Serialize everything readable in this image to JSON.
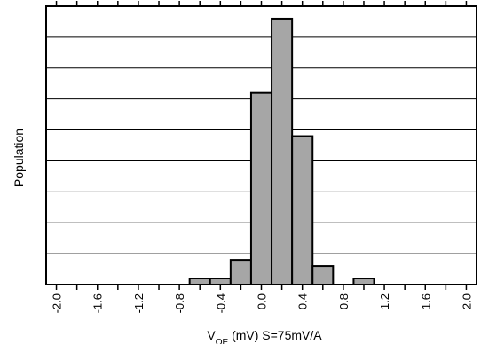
{
  "chart_data": {
    "type": "bar",
    "xlabel_main": "V",
    "xlabel_sub": "OE",
    "xlabel_rest": " (mV) S=75mV/A",
    "ylabel": "Population",
    "xlim": [
      -2.1,
      2.1
    ],
    "xticks": [
      -2.0,
      -1.6,
      -1.2,
      -0.8,
      -0.4,
      0.0,
      0.4,
      0.8,
      1.2,
      1.6,
      2.0
    ],
    "xtick_labels": [
      "-2.0",
      "-1.6",
      "-1.2",
      "-0.8",
      "-0.4",
      "0.0",
      "0.4",
      "0.8",
      "1.2",
      "1.6",
      "2.0"
    ],
    "ylim": [
      0,
      9
    ],
    "grid": "horizontal",
    "bin_width": 0.2,
    "bins": [
      {
        "center": -0.6,
        "value": 0.2
      },
      {
        "center": -0.4,
        "value": 0.2
      },
      {
        "center": -0.2,
        "value": 0.8
      },
      {
        "center": 0.0,
        "value": 6.2
      },
      {
        "center": 0.2,
        "value": 8.6
      },
      {
        "center": 0.4,
        "value": 4.8
      },
      {
        "center": 0.6,
        "value": 0.6
      },
      {
        "center": 1.0,
        "value": 0.2
      }
    ],
    "bar_color": "#a6a6a6"
  }
}
